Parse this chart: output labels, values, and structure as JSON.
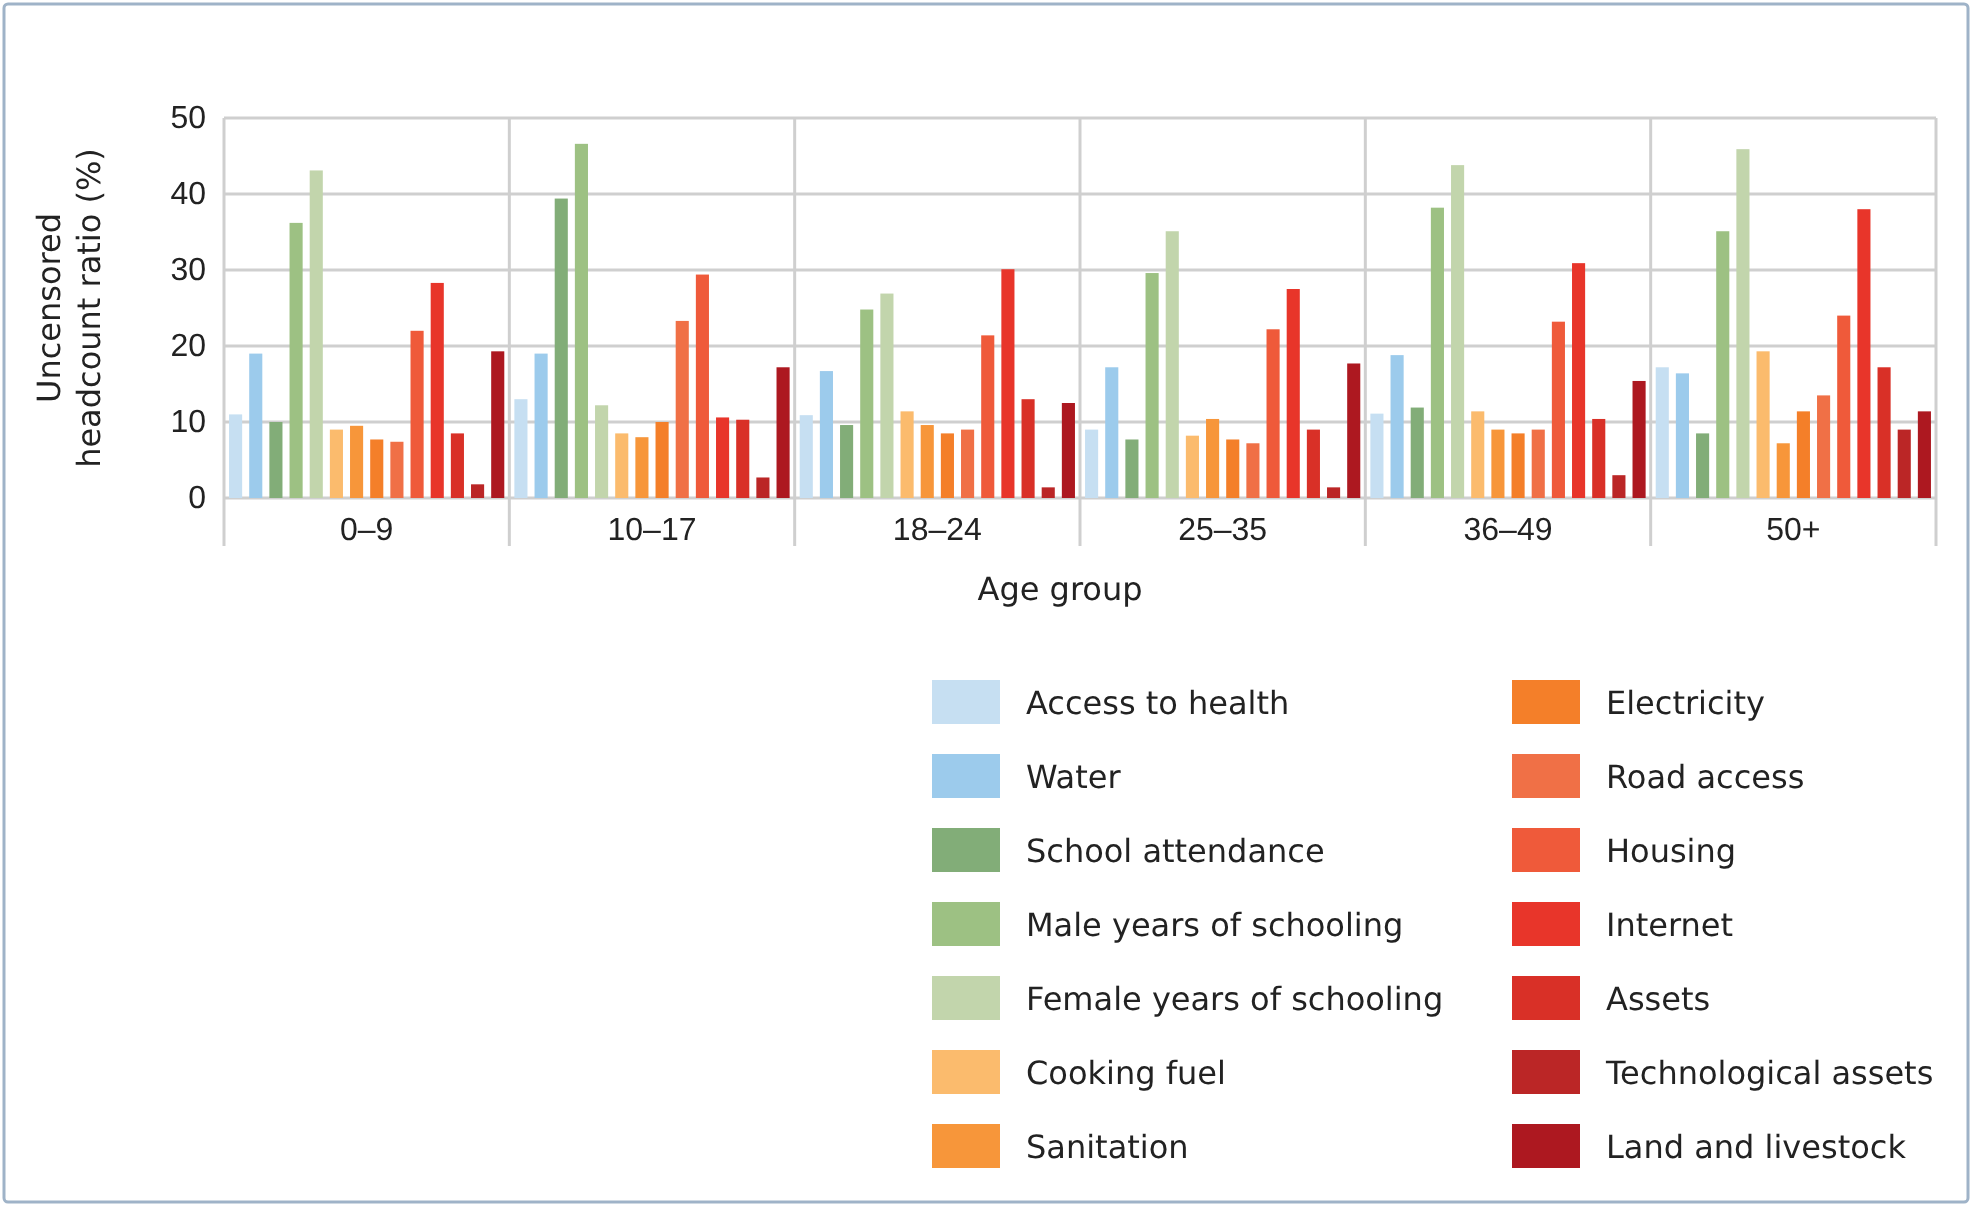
{
  "chart_data": {
    "type": "bar",
    "xlabel": "Age group",
    "ylabel": "Uncensored headcount ratio (%)",
    "categories": [
      "0–9",
      "10–17",
      "18–24",
      "25–35",
      "36–49",
      "50+"
    ],
    "ylim": [
      0,
      50
    ],
    "yticks": [
      0,
      10,
      20,
      30,
      40,
      50
    ],
    "grid": "y",
    "legend": "bottom right",
    "series": [
      {
        "name": "Access to health",
        "color": "#c6dff2",
        "values": [
          11,
          13,
          10.9,
          9,
          11.1,
          17.2
        ]
      },
      {
        "name": "Water",
        "color": "#9ccbec",
        "values": [
          19,
          19,
          16.7,
          17.2,
          18.8,
          16.4
        ]
      },
      {
        "name": "School attendance",
        "color": "#82ad78",
        "values": [
          10,
          39.4,
          9.6,
          7.7,
          11.9,
          8.5
        ]
      },
      {
        "name": "Male years of schooling",
        "color": "#9dc183",
        "values": [
          36.2,
          46.6,
          24.8,
          29.6,
          38.2,
          35.1
        ]
      },
      {
        "name": "Female years of schooling",
        "color": "#c2d5ac",
        "values": [
          43.1,
          12.2,
          26.9,
          35.1,
          43.8,
          45.9
        ]
      },
      {
        "name": "Cooking fuel",
        "color": "#fbbb6d",
        "values": [
          9,
          8.5,
          11.4,
          8.2,
          11.4,
          19.3
        ]
      },
      {
        "name": "Sanitation",
        "color": "#f7963a",
        "values": [
          9.5,
          8,
          9.6,
          10.4,
          9,
          7.2
        ]
      },
      {
        "name": "Electricity",
        "color": "#f47f29",
        "values": [
          7.7,
          10,
          8.5,
          7.7,
          8.5,
          11.4
        ]
      },
      {
        "name": "Road access",
        "color": "#f07046",
        "values": [
          7.4,
          23.3,
          9,
          7.2,
          9,
          13.5
        ]
      },
      {
        "name": "Housing",
        "color": "#ef5a3a",
        "values": [
          22,
          29.4,
          21.4,
          22.2,
          23.2,
          24
        ]
      },
      {
        "name": "Internet",
        "color": "#e8352a",
        "values": [
          28.3,
          10.6,
          30.1,
          27.5,
          30.9,
          38
        ]
      },
      {
        "name": "Assets",
        "color": "#d93027",
        "values": [
          8.5,
          10.3,
          13,
          9,
          10.4,
          17.2
        ]
      },
      {
        "name": "Technological assets",
        "color": "#bb2626",
        "values": [
          1.8,
          2.7,
          1.4,
          1.4,
          3,
          9
        ]
      },
      {
        "name": "Land and livestock",
        "color": "#ad1820",
        "values": [
          19.3,
          17.2,
          12.5,
          17.7,
          15.4,
          11.4
        ]
      }
    ]
  }
}
